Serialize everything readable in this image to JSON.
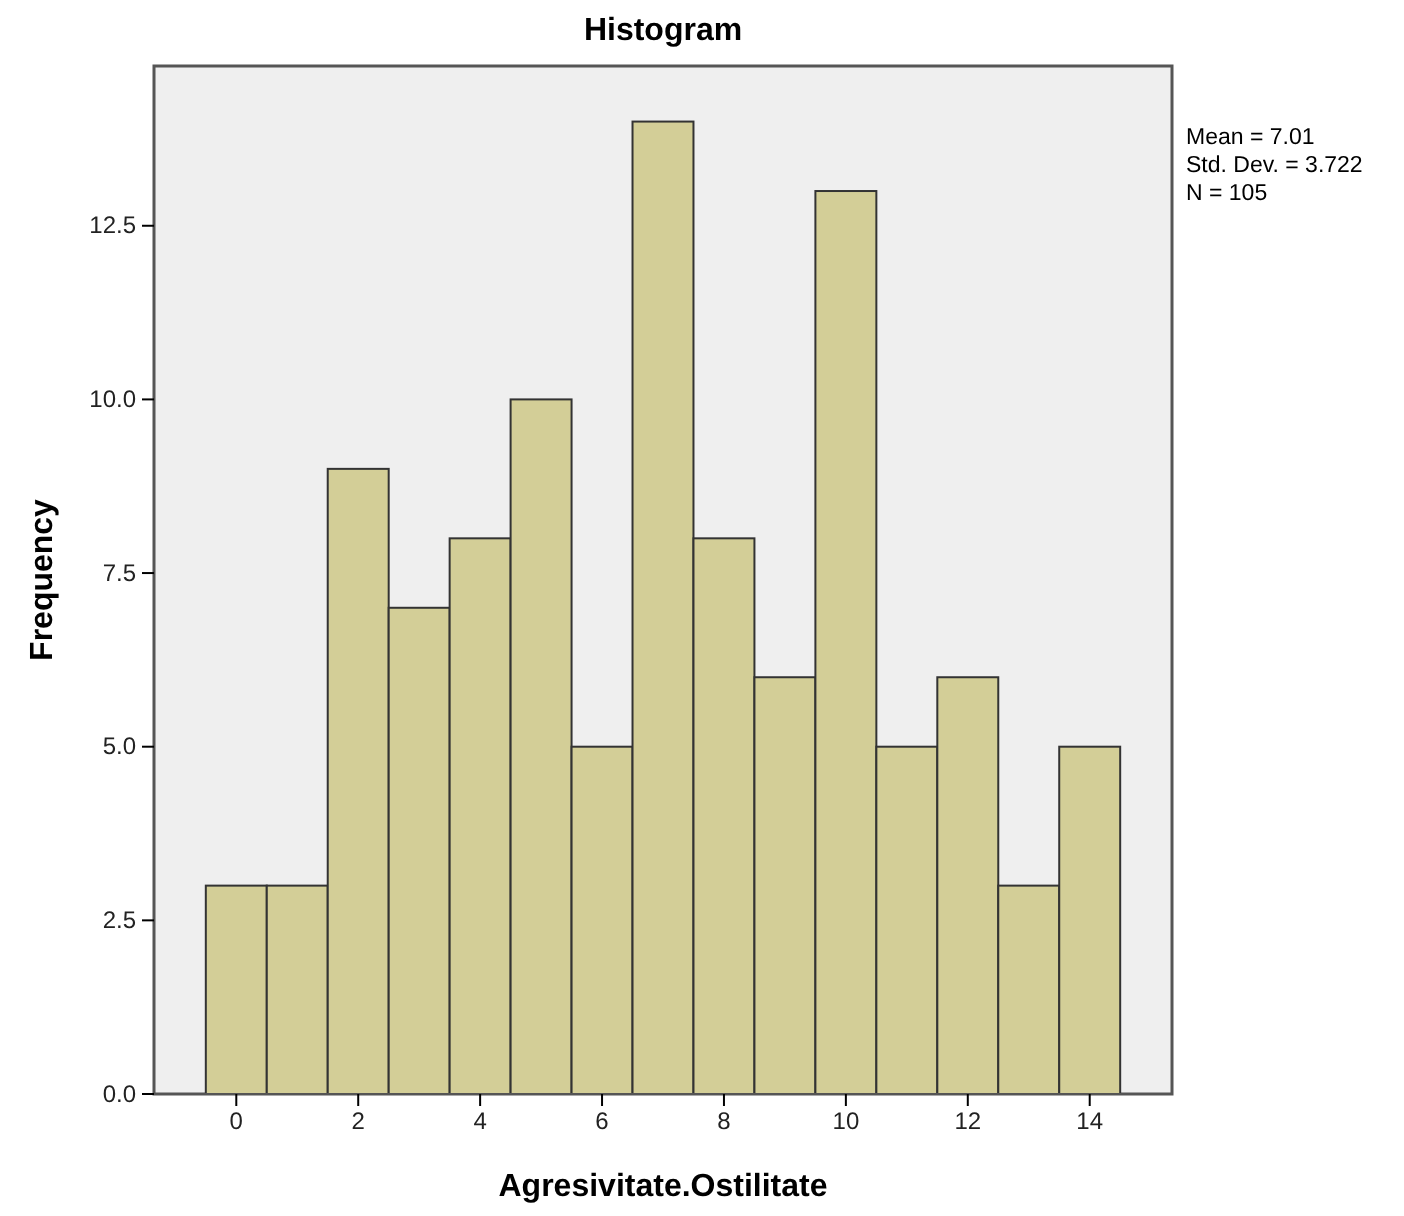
{
  "chart_data": {
    "type": "histogram",
    "title": "Histogram",
    "xlabel": "Agresivitate.Ostilitate",
    "ylabel": "Frequency",
    "bins": [
      -0.5,
      0.5,
      1.5,
      2.5,
      3.5,
      4.5,
      5.5,
      6.5,
      7.5,
      8.5,
      9.5,
      10.5,
      11.5,
      12.5,
      13.5,
      14.5
    ],
    "values": [
      3,
      3,
      9,
      7,
      8,
      10,
      5,
      14,
      8,
      6,
      13,
      5,
      6,
      3,
      5
    ],
    "color": "#d3ce97",
    "xlim": [
      -1.35,
      15.35
    ],
    "xticks": [
      0,
      2,
      4,
      6,
      8,
      10,
      12,
      14
    ],
    "ylim": [
      0,
      14.8
    ],
    "yticks": [
      {
        "value": 0,
        "label": "0.0"
      },
      {
        "value": 2.5,
        "label": "2.5"
      },
      {
        "value": 5,
        "label": "5.0"
      },
      {
        "value": 7.5,
        "label": "7.5"
      },
      {
        "value": 10,
        "label": "10.0"
      },
      {
        "value": 12.5,
        "label": "12.5"
      }
    ],
    "annotations": [
      "Mean = 7.01",
      "Std. Dev. = 3.722",
      "N = 105"
    ]
  }
}
